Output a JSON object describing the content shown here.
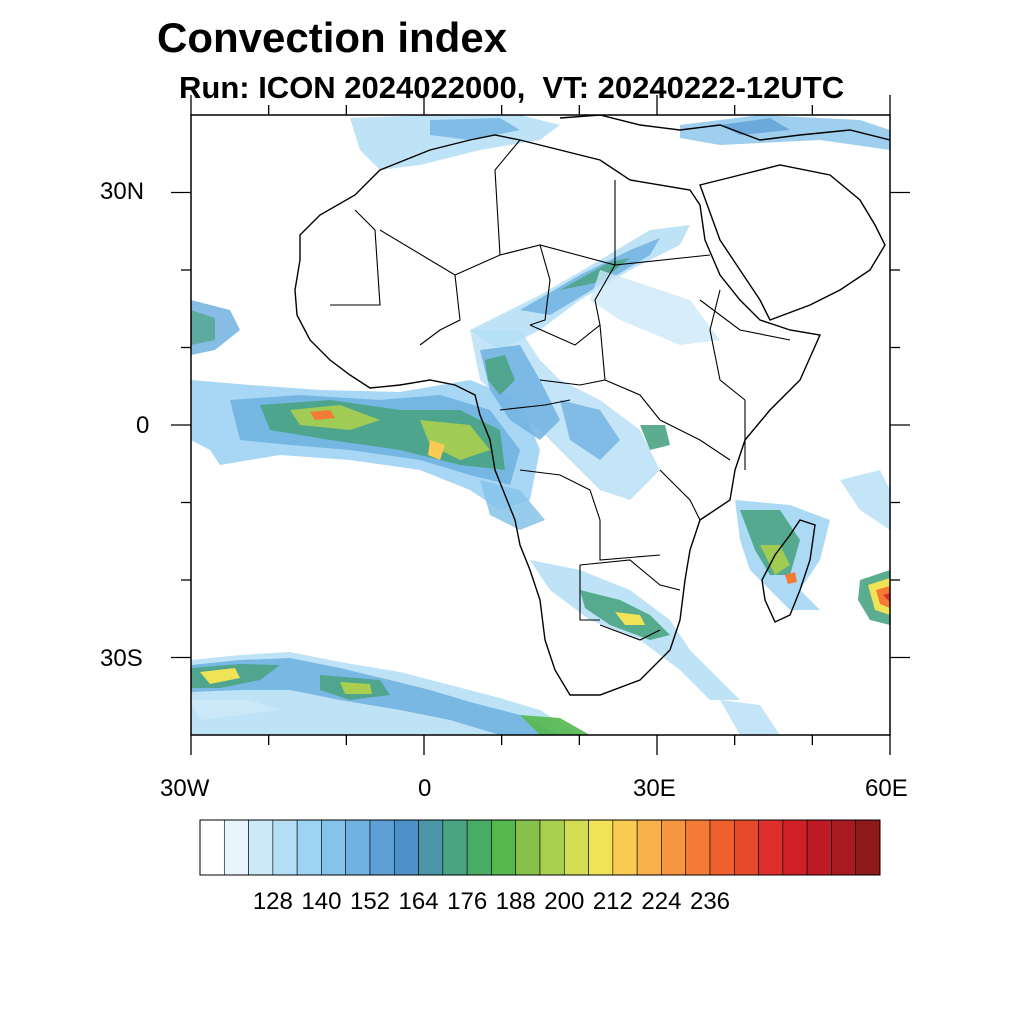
{
  "title": "Convection index",
  "subtitle": "Run: ICON 2024022000,  VT: 20240222-12UTC",
  "map": {
    "lon_range": [
      -30,
      60
    ],
    "lat_range": [
      -40,
      40
    ],
    "lat_labels": [
      "30N",
      "0",
      "30S"
    ],
    "lon_labels": [
      "30W",
      "0",
      "30E",
      "60E"
    ],
    "colorbar": {
      "colors": [
        "#ffffff",
        "#e8f4fb",
        "#cde9f7",
        "#b4def5",
        "#9dd3f3",
        "#86c3ea",
        "#70b2e1",
        "#5e9fd6",
        "#4e90c9",
        "#4a96a7",
        "#4aa383",
        "#49ac66",
        "#55b84f",
        "#86c14c",
        "#aacf4e",
        "#d2dd52",
        "#f1e356",
        "#f9cb52",
        "#f8b14a",
        "#f69640",
        "#f37b36",
        "#ee612f",
        "#e64a2b",
        "#dd2f2b",
        "#cf2028",
        "#bd1a25",
        "#a71a1f",
        "#8e1a1b"
      ],
      "tick_labels": [
        "128",
        "140",
        "152",
        "164",
        "176",
        "188",
        "200",
        "212",
        "224",
        "236"
      ]
    }
  }
}
